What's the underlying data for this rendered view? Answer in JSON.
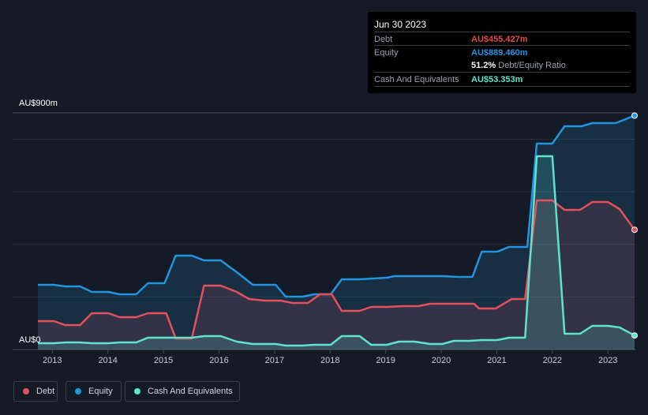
{
  "tooltip": {
    "date": "Jun 30 2023",
    "debt_label": "Debt",
    "debt_value": "AU$455.427m",
    "equity_label": "Equity",
    "equity_value": "AU$889.460m",
    "ratio_value": "51.2%",
    "ratio_label": "Debt/Equity Ratio",
    "cash_label": "Cash And Equivalents",
    "cash_value": "AU$53.353m"
  },
  "legend": [
    {
      "label": "Debt",
      "color": "#e5515b"
    },
    {
      "label": "Equity",
      "color": "#2394df"
    },
    {
      "label": "Cash And Equivalents",
      "color": "#5fe3cd"
    }
  ],
  "chart_data": {
    "type": "area",
    "ylabel_top": "AU$900m",
    "ylabel_bottom": "AU$0",
    "ylim": [
      0,
      900
    ],
    "xlim": [
      2012.74,
      2023.48
    ],
    "gridlines": [
      0,
      200,
      400,
      600,
      800,
      900
    ],
    "x_ticks": [
      "2013",
      "2014",
      "2015",
      "2016",
      "2017",
      "2018",
      "2019",
      "2020",
      "2021",
      "2022",
      "2023"
    ],
    "series": [
      {
        "name": "Equity",
        "color": "#2394df",
        "x": [
          2012.74,
          2013.03,
          2013.23,
          2013.5,
          2013.71,
          2014.01,
          2014.21,
          2014.51,
          2014.72,
          2015.02,
          2015.22,
          2015.51,
          2015.73,
          2016.03,
          2016.32,
          2016.61,
          2017.02,
          2017.2,
          2017.5,
          2017.72,
          2018.01,
          2018.21,
          2018.53,
          2019.02,
          2019.16,
          2020.02,
          2020.3,
          2020.56,
          2020.73,
          2021.01,
          2021.22,
          2021.55,
          2021.72,
          2022.0,
          2022.22,
          2022.53,
          2022.72,
          2023.14,
          2023.48
        ],
        "values": [
          246,
          246,
          240,
          240,
          219,
          219,
          210,
          210,
          252,
          252,
          357,
          357,
          339,
          339,
          294,
          246,
          246,
          201,
          201,
          210,
          210,
          267,
          267,
          273,
          279,
          279,
          276,
          276,
          372,
          372,
          390,
          390,
          783,
          783,
          849,
          849,
          861,
          861,
          889.46
        ]
      },
      {
        "name": "Debt",
        "color": "#e5515b",
        "x": [
          2012.74,
          2013.03,
          2013.23,
          2013.5,
          2013.71,
          2014.01,
          2014.21,
          2014.51,
          2014.72,
          2015.05,
          2015.22,
          2015.51,
          2015.73,
          2016.03,
          2016.32,
          2016.54,
          2016.82,
          2017.11,
          2017.32,
          2017.6,
          2017.82,
          2018.03,
          2018.21,
          2018.53,
          2018.74,
          2019.02,
          2019.31,
          2019.59,
          2019.8,
          2020.3,
          2020.59,
          2020.68,
          2020.98,
          2021.27,
          2021.51,
          2021.72,
          2022.0,
          2022.22,
          2022.5,
          2022.72,
          2023.0,
          2023.21,
          2023.48
        ],
        "values": [
          108,
          108,
          93,
          93,
          138,
          138,
          123,
          123,
          138,
          138,
          42,
          42,
          243,
          243,
          219,
          192,
          186,
          186,
          177,
          177,
          210,
          210,
          147,
          147,
          162,
          162,
          165,
          165,
          174,
          174,
          174,
          156,
          156,
          192,
          192,
          567,
          567,
          531,
          531,
          561,
          561,
          534,
          455.427
        ]
      },
      {
        "name": "Cash And Equivalents",
        "color": "#5fe3cd",
        "x": [
          2012.74,
          2013.03,
          2013.23,
          2013.5,
          2013.71,
          2014.01,
          2014.21,
          2014.51,
          2014.72,
          2015.05,
          2015.51,
          2015.73,
          2016.03,
          2016.32,
          2016.61,
          2017.02,
          2017.2,
          2017.5,
          2017.72,
          2018.01,
          2018.21,
          2018.53,
          2018.74,
          2019.02,
          2019.24,
          2019.52,
          2019.8,
          2020.02,
          2020.23,
          2020.51,
          2020.73,
          2021.01,
          2021.22,
          2021.51,
          2021.72,
          2022.0,
          2022.22,
          2022.5,
          2022.72,
          2023.0,
          2023.21,
          2023.48
        ],
        "values": [
          24,
          24,
          27,
          27,
          24,
          24,
          27,
          27,
          45,
          45,
          45,
          51,
          51,
          30,
          21,
          21,
          15,
          15,
          18,
          18,
          51,
          51,
          18,
          18,
          30,
          30,
          21,
          21,
          33,
          33,
          36,
          36,
          45,
          45,
          735,
          735,
          60,
          60,
          90,
          90,
          84,
          53.353
        ]
      }
    ]
  }
}
